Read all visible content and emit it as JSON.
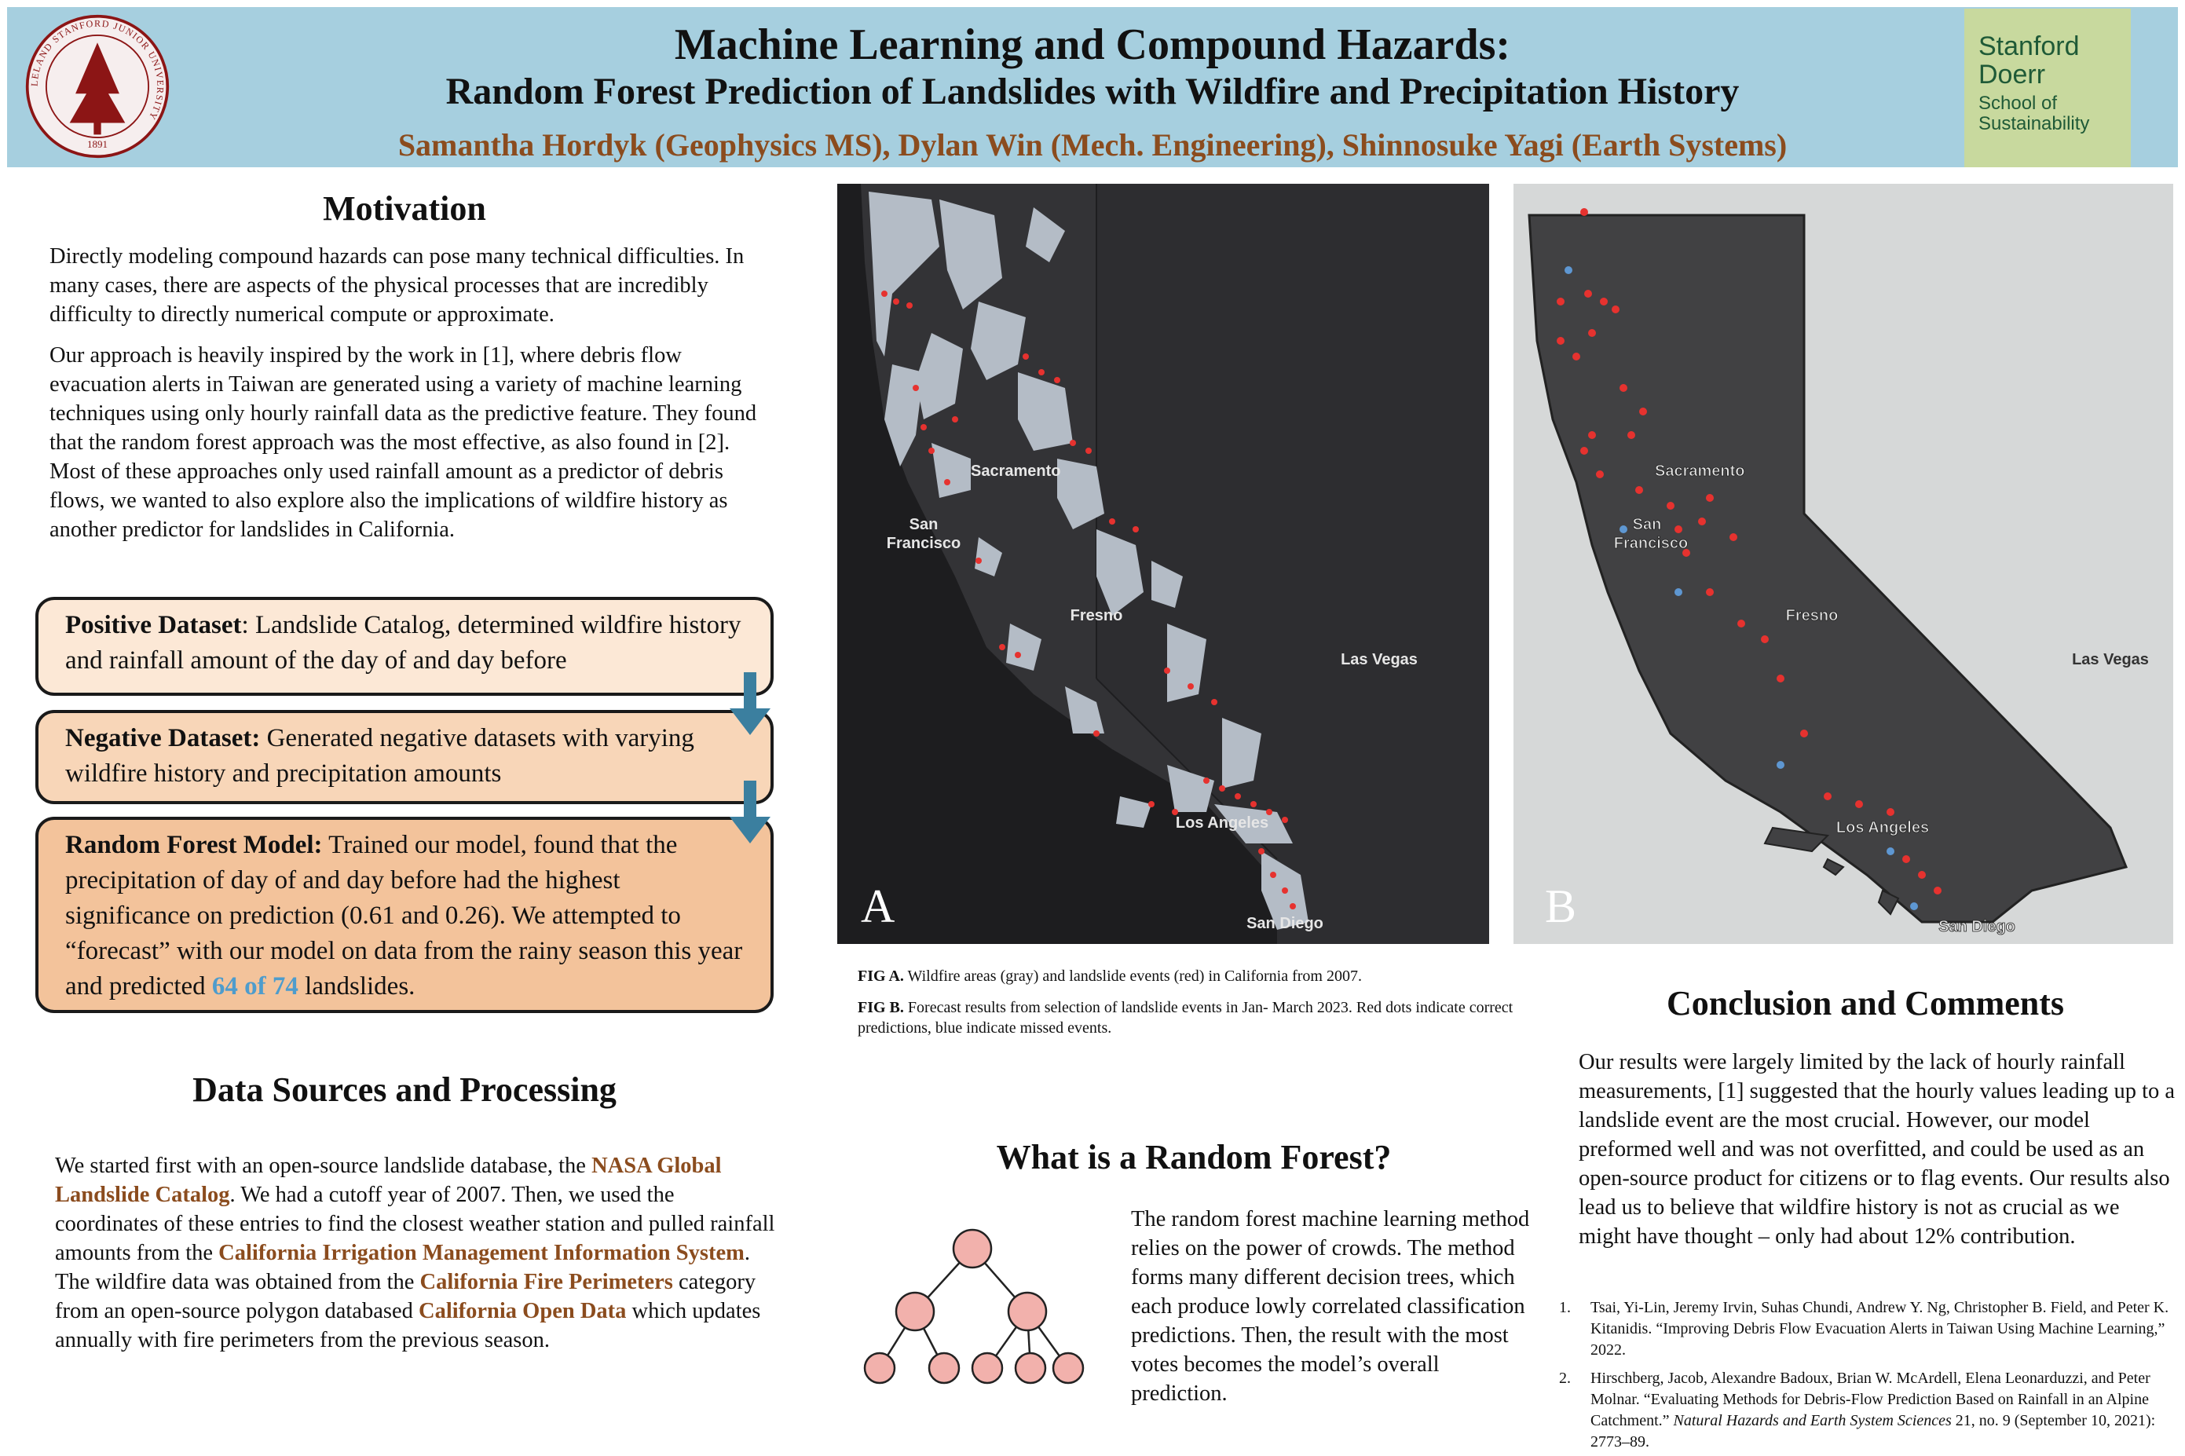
{
  "header": {
    "title_line1": "Machine Learning and Compound Hazards:",
    "title_line2": "Random Forest Prediction of Landslides with Wildfire and Precipitation History",
    "authors": "Samantha Hordyk (Geophysics MS), Dylan Win (Mech. Engineering), Shinnosuke Yagi (Earth Systems)",
    "seal_text": "LELAND STANFORD JUNIOR UNIVERSITY",
    "seal_year": "1891",
    "logo_lines": [
      "Stanford",
      "Doerr",
      "School of",
      "Sustainability"
    ]
  },
  "motivation": {
    "heading": "Motivation",
    "para1": "Directly modeling compound hazards can pose many technical difficulties. In many cases, there are aspects of the physical processes that are incredibly difficulty to directly numerical compute or approximate.",
    "para2": "Our approach is heavily inspired by the work in [1], where debris flow evacuation alerts in Taiwan are generated using a variety of machine learning techniques using only hourly rainfall data as the predictive feature. They found that the random forest approach was the most effective, as also found in [2]. Most of these approaches only used rainfall amount as a predictor of debris flows, we wanted to also explore also the implications of wildfire history as another predictor for landslides in California."
  },
  "flow": {
    "positive_label": "Positive Dataset",
    "positive_text": ": Landslide Catalog, determined wildfire history and rainfall amount of the day of and day before",
    "negative_label": "Negative Dataset:",
    "negative_text": " Generated negative datasets with varying wildfire history and precipitation amounts",
    "model_label": "Random Forest Model:",
    "model_text": " Trained our model, found that the precipitation of day of and day before had the highest significance on prediction (0.61 and 0.26). We attempted to “forecast” with our model on data from the rainy season this year and predicted ",
    "model_highlight": "64 of 74",
    "model_tail": " landslides.",
    "arrow_color": "#3b7f9f"
  },
  "data_sources": {
    "heading": "Data Sources and Processing",
    "t1": "We started first with  an open-source landslide database, the ",
    "l1": "NASA Global Landslide Catalog",
    "t2": ". We had a cutoff  year of 2007. Then, we used the coordinates of these entries to find the closest weather station and pulled rainfall amounts from the ",
    "l2": "California Irrigation Management Information System",
    "t3": ". The wildfire data was obtained from the ",
    "l3": "California Fire Perimeters",
    "t4": " category from an open-source polygon databased ",
    "l4": "California Open Data",
    "t5": " which updates annually with fire perimeters from the previous season."
  },
  "maps": {
    "a_label": "A",
    "b_label": "B",
    "cities": {
      "sacramento": "Sacramento",
      "san": "San",
      "francisco": "Francisco",
      "fresno": "Fresno",
      "las_vegas": "Las Vegas",
      "los_angeles": "Los Angeles",
      "san_diego": "San Diego"
    },
    "colors": {
      "ocean_a": "#1d1d1f",
      "land_a": "#333336",
      "fire_a": "#b4bcc6",
      "landslide": "#e6322f",
      "ocean_b": "#d6d8d8",
      "land_b": "#414143",
      "missed": "#5e97d2"
    },
    "caption_a_label": "FIG A.",
    "caption_a": "  Wildfire areas (gray) and landslide events (red) in California from 2007.",
    "caption_b_label": "FIG B.",
    "caption_b": " Forecast results from selection of landslide events in Jan- March 2023. Red dots indicate correct predictions, blue indicate missed events."
  },
  "random_forest": {
    "heading": "What is a Random Forest?",
    "text": "The random forest machine learning method relies on the power of crowds. The method forms many different decision trees, which each produce lowly correlated classification predictions. Then, the result with the most votes becomes the model’s overall prediction.",
    "node_color": "#f2b1ac"
  },
  "conclusion": {
    "heading": "Conclusion and Comments",
    "text": "Our results were largely limited by the lack of hourly rainfall measurements, [1] suggested that the hourly values leading up to a landslide event are the most crucial. However, our model preformed well and was not overfitted, and could be used as an open-source product for citizens or to flag events. Our results also lead us to believe that wildfire history is not as crucial as we might have thought – only had about 12% contribution."
  },
  "references": [
    {
      "num": "1.",
      "text": "Tsai, Yi-Lin, Jeremy Irvin, Suhas Chundi, Andrew Y. Ng, Christopher B. Field, and Peter K. Kitanidis. “Improving Debris Flow Evacuation Alerts in Taiwan Using Machine Learning,” 2022."
    },
    {
      "num": "2.",
      "text_a": "Hirschberg, Jacob, Alexandre Badoux, Brian W. McArdell, Elena Leonarduzzi, and Peter Molnar. “Evaluating Methods for Debris-Flow Prediction Based on Rainfall in an Alpine Catchment.” ",
      "journal": "Natural Hazards and Earth System Sciences",
      "text_b": " 21, no. 9 (September 10, 2021): 2773–89."
    }
  ]
}
